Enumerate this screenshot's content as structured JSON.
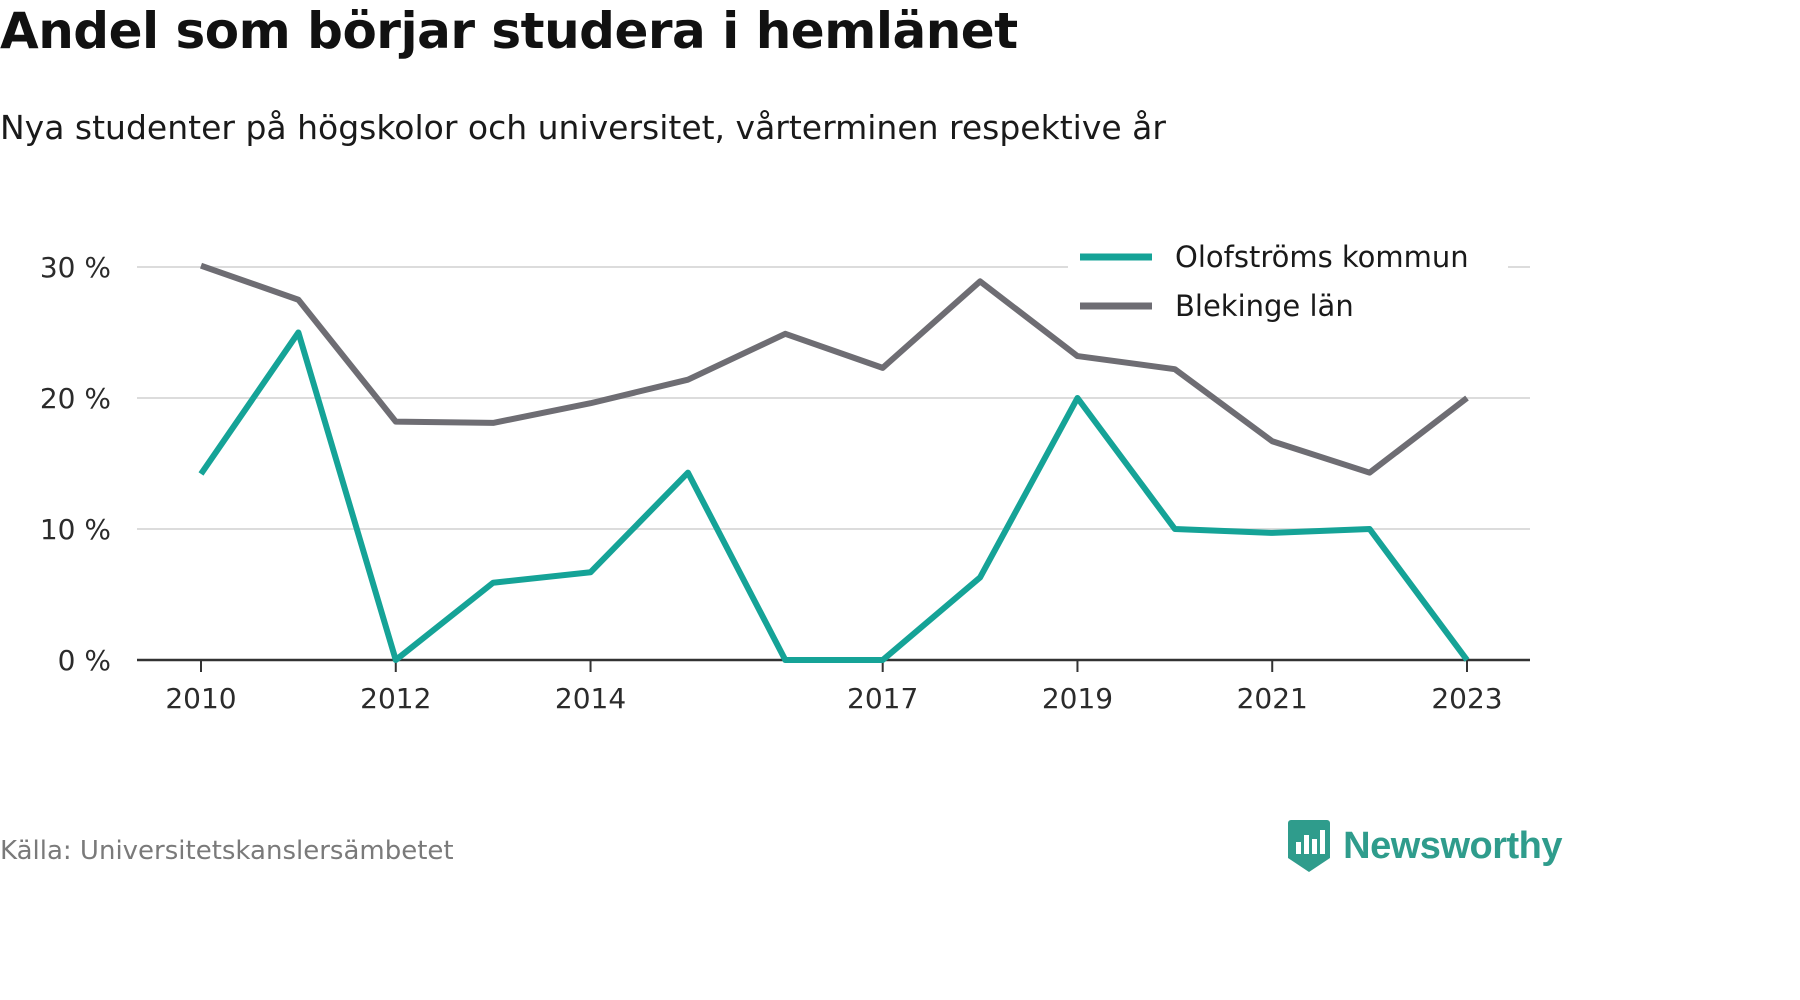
{
  "header": {
    "title": "Andel som börjar studera i hemlänet",
    "subtitle": "Nya studenter på högskolor och universitet, vårterminen respektive år"
  },
  "footer": {
    "source": "Källa: Universitetskanslersämbetet",
    "brand": "Newsworthy",
    "brand_icon": "newsworthy-logo-icon"
  },
  "colors": {
    "olofstrom": "#15a397",
    "blekinge": "#6e6d73",
    "grid": "#dcdcdc",
    "axis": "#333333",
    "brand": "#2f9c8c"
  },
  "chart_data": {
    "type": "line",
    "x": [
      2010,
      2011,
      2012,
      2013,
      2014,
      2015,
      2016,
      2017,
      2018,
      2019,
      2020,
      2021,
      2022,
      2023
    ],
    "x_tick_values": [
      2010,
      2012,
      2014,
      2017,
      2019,
      2021,
      2023
    ],
    "x_tick_labels": [
      "2010",
      "2012",
      "2014",
      "2017",
      "2019",
      "2021",
      "2023"
    ],
    "y_ticks": [
      0,
      10,
      20,
      30
    ],
    "y_tick_labels": [
      "0 %",
      "10 %",
      "20 %",
      "30 %"
    ],
    "ylim": [
      0,
      30
    ],
    "xlabel": "",
    "ylabel": "",
    "grid": true,
    "legend_position": "top-right",
    "series": [
      {
        "name": "Olofströms kommun",
        "color": "#15a397",
        "values": [
          14.2,
          25.0,
          0.0,
          5.9,
          6.7,
          14.3,
          0.0,
          0.0,
          6.3,
          20.0,
          10.0,
          9.7,
          10.0,
          0.0
        ]
      },
      {
        "name": "Blekinge län",
        "color": "#6e6d73",
        "values": [
          30.1,
          27.5,
          18.2,
          18.1,
          19.6,
          21.4,
          24.9,
          22.3,
          28.9,
          23.2,
          22.2,
          16.7,
          14.3,
          20.0
        ]
      }
    ]
  }
}
